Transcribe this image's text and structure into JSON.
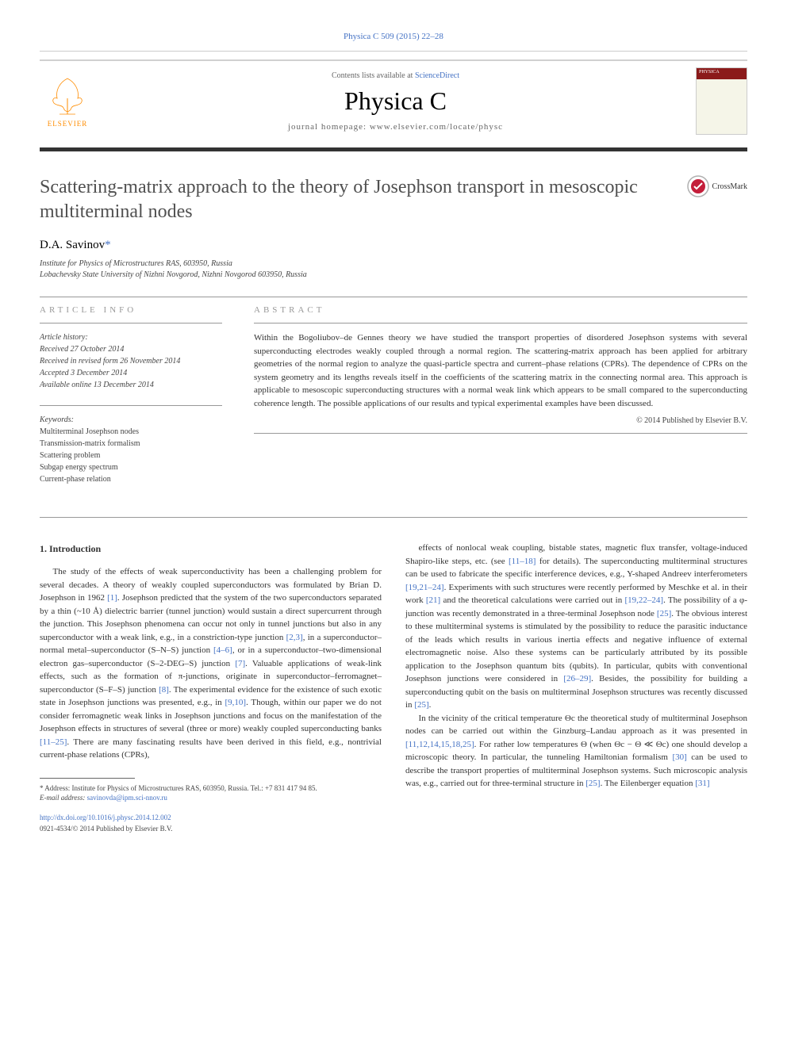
{
  "journal_ref": "Physica C 509 (2015) 22–28",
  "header": {
    "contents_prefix": "Contents lists available at ",
    "contents_link": "ScienceDirect",
    "journal_name": "Physica C",
    "homepage_prefix": "journal homepage: ",
    "homepage_url": "www.elsevier.com/locate/physc",
    "publisher_name": "ELSEVIER",
    "cover_label": "PHYSICA"
  },
  "title": "Scattering-matrix approach to the theory of Josephson transport in mesoscopic multiterminal nodes",
  "crossmark_label": "CrossMark",
  "author": {
    "name": "D.A. Savinov",
    "marker": "*"
  },
  "affiliations": [
    "Institute for Physics of Microstructures RAS, 603950, Russia",
    "Lobachevsky State University of Nizhni Novgorod, Nizhni Novgorod 603950, Russia"
  ],
  "info": {
    "heading": "ARTICLE INFO",
    "history_label": "Article history:",
    "history": [
      "Received 27 October 2014",
      "Received in revised form 26 November 2014",
      "Accepted 3 December 2014",
      "Available online 13 December 2014"
    ],
    "keywords_label": "Keywords:",
    "keywords": [
      "Multiterminal Josephson nodes",
      "Transmission-matrix formalism",
      "Scattering problem",
      "Subgap energy spectrum",
      "Current-phase relation"
    ]
  },
  "abstract": {
    "heading": "ABSTRACT",
    "text": "Within the Bogoliubov–de Gennes theory we have studied the transport properties of disordered Josephson systems with several superconducting electrodes weakly coupled through a normal region. The scattering-matrix approach has been applied for arbitrary geometries of the normal region to analyze the quasi-particle spectra and current–phase relations (CPRs). The dependence of CPRs on the system geometry and its lengths reveals itself in the coefficients of the scattering matrix in the connecting normal area. This approach is applicable to mesoscopic superconducting structures with a normal weak link which appears to be small compared to the superconducting coherence length. The possible applications of our results and typical experimental examples have been discussed.",
    "copyright": "© 2014 Published by Elsevier B.V."
  },
  "body": {
    "section_number": "1.",
    "section_title": "Introduction",
    "col1_p1": "The study of the effects of weak superconductivity has been a challenging problem for several decades. A theory of weakly coupled superconductors was formulated by Brian D. Josephson in 1962 [1]. Josephson predicted that the system of the two superconductors separated by a thin (~10 Å) dielectric barrier (tunnel junction) would sustain a direct supercurrent through the junction. This Josephson phenomena can occur not only in tunnel junctions but also in any superconductor with a weak link, e.g., in a constriction-type junction [2,3], in a superconductor–normal metal–superconductor (S–N–S) junction [4–6], or in a superconductor–two-dimensional electron gas–superconductor (S–2-DEG–S) junction [7]. Valuable applications of weak-link effects, such as the formation of π-junctions, originate in superconductor–ferromagnet–superconductor (S–F–S) junction [8]. The experimental evidence for the existence of such exotic state in Josephson junctions was presented, e.g., in [9,10]. Though, within our paper we do not consider ferromagnetic weak links in Josephson junctions and focus on the manifestation of the Josephson effects in structures of several (three or more) weakly coupled superconducting banks [11–25]. There are many fascinating results have been derived in this field, e.g., nontrivial current-phase relations (CPRs),",
    "col2_p1": "effects of nonlocal weak coupling, bistable states, magnetic flux transfer, voltage-induced Shapiro-like steps, etc. (see [11–18] for details). The superconducting multiterminal structures can be used to fabricate the specific interference devices, e.g., Y-shaped Andreev interferometers [19,21–24]. Experiments with such structures were recently performed by Meschke et al. in their work [21] and the theoretical calculations were carried out in [19,22–24]. The possibility of a φ-junction was recently demonstrated in a three-terminal Josephson node [25]. The obvious interest to these multiterminal systems is stimulated by the possibility to reduce the parasitic inductance of the leads which results in various inertia effects and negative influence of external electromagnetic noise. Also these systems can be particularly attributed by its possible application to the Josephson quantum bits (qubits). In particular, qubits with conventional Josephson junctions were considered in [26–29]. Besides, the possibility for building a superconducting qubit on the basis on multiterminal Josephson structures was recently discussed in [25].",
    "col2_p2": "In the vicinity of the critical temperature Θc the theoretical study of multiterminal Josephson nodes can be carried out within the Ginzburg–Landau approach as it was presented in [11,12,14,15,18,25]. For rather low temperatures Θ (when Θc − Θ ≪ Θc) one should develop a microscopic theory. In particular, the tunneling Hamiltonian formalism [30] can be used to describe the transport properties of multiterminal Josephson systems. Such microscopic analysis was, e.g., carried out for three-terminal structure in [25]. The Eilenberger equation [31]"
  },
  "footnote": {
    "marker": "*",
    "address_label": "Address:",
    "address": "Institute for Physics of Microstructures RAS, 603950, Russia. Tel.: +7 831 417 94 85.",
    "email_label": "E-mail address:",
    "email": "savinovda@ipm.sci-nnov.ru"
  },
  "doi": {
    "url": "http://dx.doi.org/10.1016/j.physc.2014.12.002",
    "issn_line": "0921-4534/© 2014 Published by Elsevier B.V."
  }
}
